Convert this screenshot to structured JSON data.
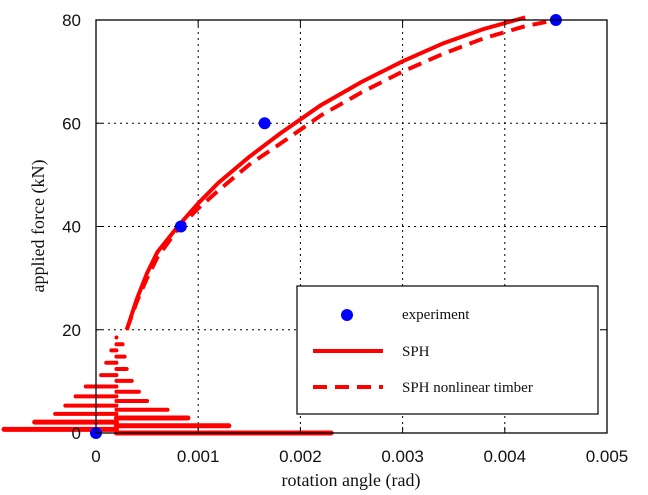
{
  "chart_data": {
    "type": "line",
    "title": "",
    "xlabel": "rotation angle (rad)",
    "ylabel": "applied force (kN)",
    "xlim": [
      0,
      0.005
    ],
    "ylim": [
      0,
      80
    ],
    "xticks": [
      "0",
      "0.001",
      "0.002",
      "0.003",
      "0.004",
      "0.005"
    ],
    "yticks": [
      "0",
      "20",
      "40",
      "60",
      "80"
    ],
    "grid": true,
    "legend_position": "bottom-right",
    "colors": {
      "experiment": "#0000ff",
      "sph": "#ff0000"
    },
    "series": [
      {
        "name": "experiment",
        "style": "markers",
        "x": [
          0,
          0.00083,
          0.00165,
          0.0045
        ],
        "y": [
          0,
          40,
          60,
          80
        ]
      },
      {
        "name": "SPH",
        "style": "solid",
        "x": [
          0.0003,
          0.0004,
          0.0005,
          0.0006,
          0.0008,
          0.001,
          0.0012,
          0.0015,
          0.0018,
          0.0022,
          0.0026,
          0.003,
          0.0034,
          0.0038,
          0.0042
        ],
        "y": [
          20,
          26,
          31,
          35,
          40,
          44.5,
          48.5,
          53.5,
          58,
          63.5,
          68,
          72,
          75.5,
          78.3,
          80.5
        ]
      },
      {
        "name": "SPH nonlinear timber",
        "style": "dashed",
        "x": [
          0.0003,
          0.0004,
          0.0005,
          0.0006,
          0.0008,
          0.001,
          0.0012,
          0.0015,
          0.0018,
          0.0022,
          0.0026,
          0.003,
          0.0034,
          0.0038,
          0.0042,
          0.0045
        ],
        "y": [
          20,
          25.5,
          30,
          34,
          39.5,
          43.5,
          47,
          52,
          56,
          61.5,
          66,
          70,
          73.5,
          76.5,
          78.8,
          80
        ]
      }
    ]
  }
}
